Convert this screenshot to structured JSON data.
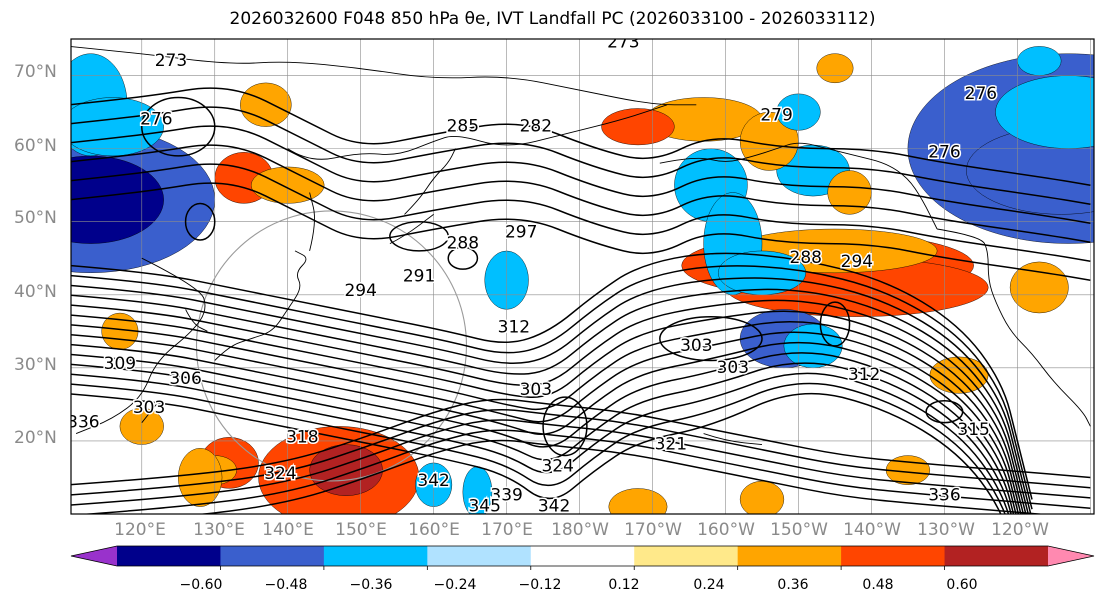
{
  "title": "2026032600 F048 850 hPa θe, IVT Landfall PC (2026033100 - 2026033112)",
  "map": {
    "lat_labels": [
      "70°N",
      "60°N",
      "50°N",
      "40°N",
      "30°N",
      "20°N"
    ],
    "lon_labels": [
      "120°E",
      "130°E",
      "140°E",
      "150°E",
      "160°E",
      "170°E",
      "180°W",
      "170°W",
      "160°W",
      "150°W",
      "140°W",
      "130°W",
      "120°W"
    ],
    "contour_labels": [
      {
        "text": "273",
        "lat": 72.0,
        "lon": 124.0
      },
      {
        "text": "276",
        "lat": 64.0,
        "lon": 122.0
      },
      {
        "text": "273",
        "lat": 74.5,
        "lon": 186.0
      },
      {
        "text": "279",
        "lat": 64.5,
        "lon": 207.0
      },
      {
        "text": "276",
        "lat": 67.5,
        "lon": 235.0
      },
      {
        "text": "276",
        "lat": 59.5,
        "lon": 230.0
      },
      {
        "text": "282",
        "lat": 63.0,
        "lon": 174.0
      },
      {
        "text": "285",
        "lat": 63.0,
        "lon": 164.0
      },
      {
        "text": "288",
        "lat": 47.0,
        "lon": 164.0
      },
      {
        "text": "291",
        "lat": 42.5,
        "lon": 158.0
      },
      {
        "text": "294",
        "lat": 40.5,
        "lon": 150.0
      },
      {
        "text": "297",
        "lat": 48.5,
        "lon": 172.0
      },
      {
        "text": "288",
        "lat": 45.0,
        "lon": 211.0
      },
      {
        "text": "294",
        "lat": 44.5,
        "lon": 218.0
      },
      {
        "text": "312",
        "lat": 35.5,
        "lon": 171.0
      },
      {
        "text": "303",
        "lat": 33.0,
        "lon": 196.0
      },
      {
        "text": "303",
        "lat": 30.0,
        "lon": 201.0
      },
      {
        "text": "303",
        "lat": 27.0,
        "lon": 174.0
      },
      {
        "text": "312",
        "lat": 29.0,
        "lon": 219.0
      },
      {
        "text": "315",
        "lat": 21.5,
        "lon": 234.0
      },
      {
        "text": "318",
        "lat": 20.5,
        "lon": 142.0
      },
      {
        "text": "321",
        "lat": 19.5,
        "lon": 192.5
      },
      {
        "text": "324",
        "lat": 16.5,
        "lon": 177.0
      },
      {
        "text": "324",
        "lat": 15.5,
        "lon": 139.0
      },
      {
        "text": "342",
        "lat": 14.5,
        "lon": 160.0
      },
      {
        "text": "339",
        "lat": 12.5,
        "lon": 170.0
      },
      {
        "text": "345",
        "lat": 11.0,
        "lon": 167.0
      },
      {
        "text": "342",
        "lat": 11.0,
        "lon": 176.5
      },
      {
        "text": "336",
        "lat": 12.5,
        "lon": 230.0
      },
      {
        "text": "309",
        "lat": 30.5,
        "lon": 117.0
      },
      {
        "text": "306",
        "lat": 28.5,
        "lon": 126.0
      },
      {
        "text": "303",
        "lat": 24.5,
        "lon": 121.0
      },
      {
        "text": "336",
        "lat": 22.5,
        "lon": 112.0
      }
    ]
  },
  "colorbar": {
    "ticks": [
      "−0.60",
      "−0.48",
      "−0.36",
      "−0.24",
      "−0.12",
      "0.12",
      "0.24",
      "0.36",
      "0.48",
      "0.60"
    ],
    "colors": [
      "#9932cc",
      "#00008b",
      "#3a5fcd",
      "#00bfff",
      "#b0e2ff",
      "#ffffff",
      "#ffe98a",
      "#ffa500",
      "#ff4500",
      "#b22222",
      "#ff89b0"
    ]
  }
}
